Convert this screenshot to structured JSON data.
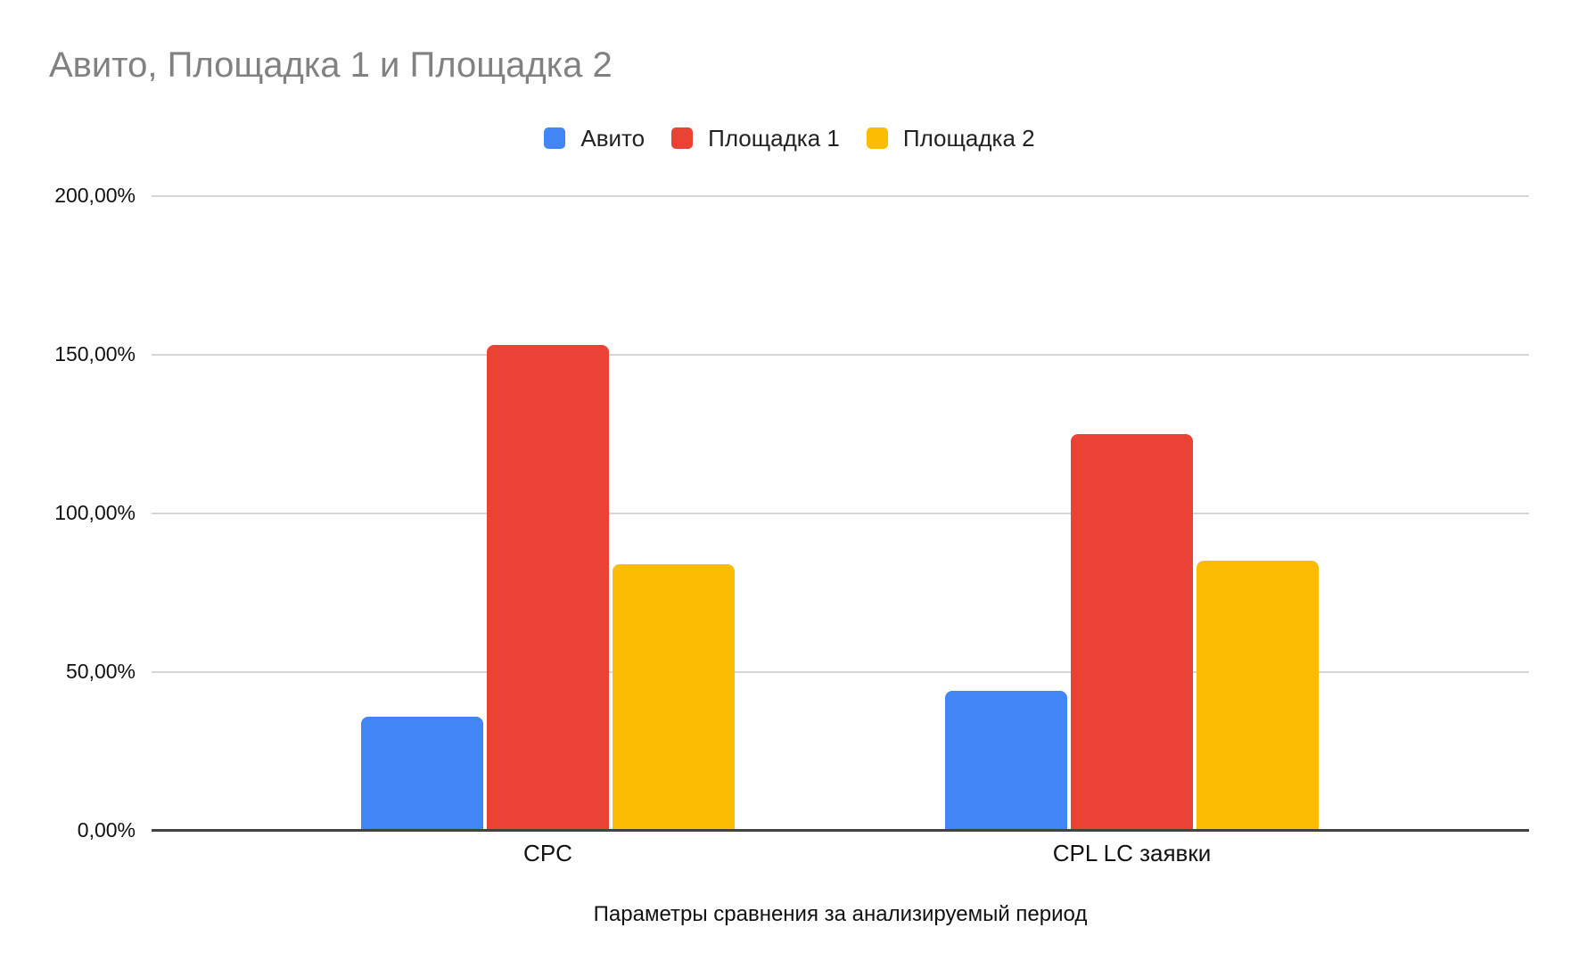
{
  "chart_data": {
    "type": "bar",
    "title": "Авито, Площадка 1 и Площадка 2",
    "categories": [
      "CPC",
      "CPL LC заявки"
    ],
    "series": [
      {
        "name": "Авито",
        "color": "#4285F4",
        "values": [
          36,
          44
        ]
      },
      {
        "name": "Площадка 1",
        "color": "#EA4335",
        "values": [
          153,
          125
        ]
      },
      {
        "name": "Площадка 2",
        "color": "#FBBC04",
        "values": [
          84,
          85
        ]
      }
    ],
    "values_unit": "percent",
    "xlabel": "Параметры сравнения за анализируемый период",
    "ylabel": "",
    "ylim": [
      0,
      200
    ],
    "yticks": [
      {
        "value": 200,
        "label": "200,00%"
      },
      {
        "value": 150,
        "label": "150,00%"
      },
      {
        "value": 100,
        "label": "100,00%"
      },
      {
        "value": 50,
        "label": "50,00%"
      },
      {
        "value": 0,
        "label": "0,00%"
      }
    ],
    "grid": true,
    "legend_position": "top"
  },
  "colors": {
    "title_text": "#818181",
    "axis_text": "#111111",
    "gridline": "#d6d6d6",
    "axis_line": "#424242",
    "background": "#ffffff"
  }
}
